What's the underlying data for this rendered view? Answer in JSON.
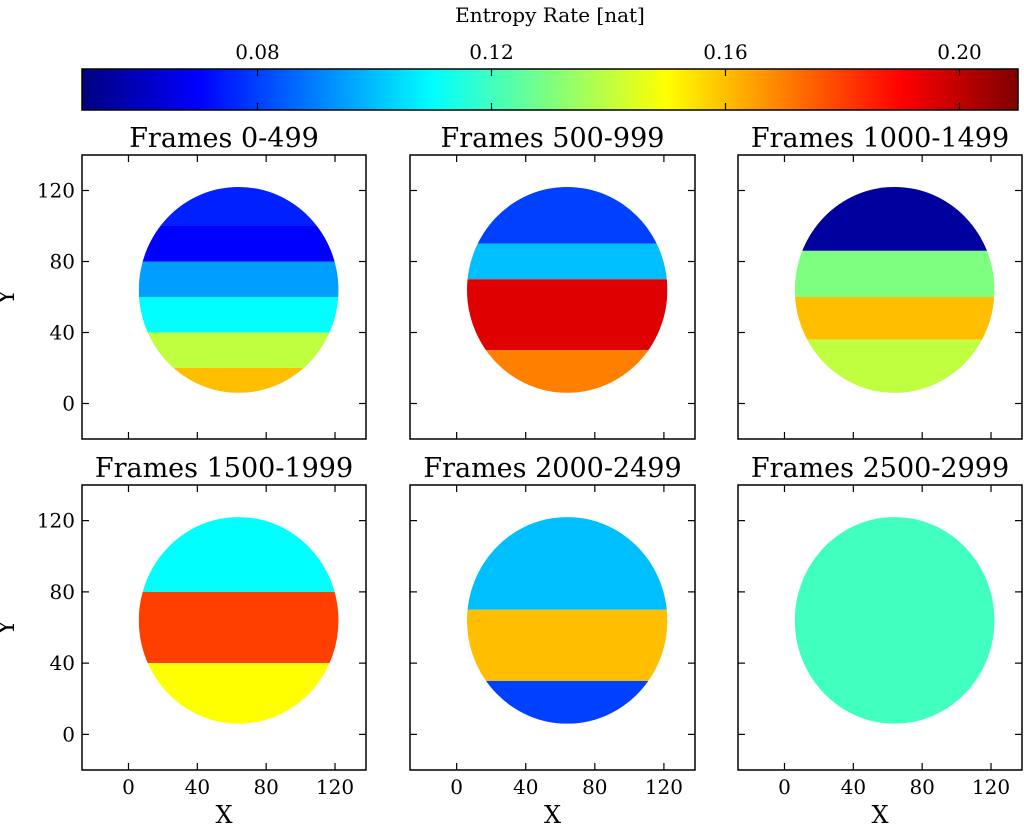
{
  "colorbar": {
    "label": "Entropy Rate [nat]",
    "ticks": [
      0.08,
      0.12,
      0.16,
      0.2
    ],
    "tick_labels": [
      "0.08",
      "0.12",
      "0.16",
      "0.20"
    ],
    "range": [
      0.05,
      0.21
    ],
    "colormap": "jet",
    "colors": [
      "#00007f",
      "#0000ff",
      "#007fff",
      "#00ffff",
      "#7fff7f",
      "#ffff00",
      "#ff7f00",
      "#ff0000",
      "#7f0000"
    ]
  },
  "chart_data": [
    {
      "type": "heatmap",
      "title": "Frames 0-499",
      "xlabel": "",
      "ylabel": "Y",
      "xlim": [
        -27,
        138
      ],
      "ylim": [
        -20,
        140
      ],
      "xticks": [
        0,
        40,
        80,
        120
      ],
      "yticks": [
        0,
        40,
        80,
        120
      ],
      "show_xticklabels": false,
      "show_yticklabels": true,
      "disc": {
        "center": [
          64,
          64
        ],
        "radius": 58
      },
      "regions": [
        {
          "y_from": 122,
          "y_to": 100,
          "value": 0.075
        },
        {
          "y_from": 100,
          "y_to": 80,
          "value": 0.07
        },
        {
          "y_from": 80,
          "y_to": 60,
          "value": 0.095
        },
        {
          "y_from": 60,
          "y_to": 40,
          "value": 0.11
        },
        {
          "y_from": 40,
          "y_to": 20,
          "value": 0.14
        },
        {
          "y_from": 20,
          "y_to": 6,
          "value": 0.16
        }
      ]
    },
    {
      "type": "heatmap",
      "title": "Frames 500-999",
      "xlabel": "",
      "ylabel": "",
      "xlim": [
        -27,
        138
      ],
      "ylim": [
        -20,
        140
      ],
      "xticks": [
        0,
        40,
        80,
        120
      ],
      "yticks": [
        0,
        40,
        80,
        120
      ],
      "show_xticklabels": false,
      "show_yticklabels": false,
      "disc": {
        "center": [
          64,
          64
        ],
        "radius": 58
      },
      "regions": [
        {
          "y_from": 122,
          "y_to": 90,
          "value": 0.08
        },
        {
          "y_from": 90,
          "y_to": 70,
          "value": 0.1
        },
        {
          "y_from": 70,
          "y_to": 30,
          "value": 0.195
        },
        {
          "y_from": 30,
          "y_to": 6,
          "value": 0.17
        }
      ]
    },
    {
      "type": "heatmap",
      "title": "Frames 1000-1499",
      "xlabel": "",
      "ylabel": "",
      "xlim": [
        -27,
        138
      ],
      "ylim": [
        -20,
        140
      ],
      "xticks": [
        0,
        40,
        80,
        120
      ],
      "yticks": [
        0,
        40,
        80,
        120
      ],
      "show_xticklabels": false,
      "show_yticklabels": false,
      "disc": {
        "center": [
          64,
          64
        ],
        "radius": 58
      },
      "regions": [
        {
          "y_from": 122,
          "y_to": 86,
          "value": 0.055
        },
        {
          "y_from": 86,
          "y_to": 60,
          "value": 0.13
        },
        {
          "y_from": 60,
          "y_to": 36,
          "value": 0.16
        },
        {
          "y_from": 36,
          "y_to": 6,
          "value": 0.14
        }
      ]
    },
    {
      "type": "heatmap",
      "title": "Frames 1500-1999",
      "xlabel": "X",
      "ylabel": "Y",
      "xlim": [
        -27,
        138
      ],
      "ylim": [
        -20,
        140
      ],
      "xticks": [
        0,
        40,
        80,
        120
      ],
      "yticks": [
        0,
        40,
        80,
        120
      ],
      "show_xticklabels": true,
      "show_yticklabels": true,
      "disc": {
        "center": [
          64,
          64
        ],
        "radius": 58
      },
      "regions": [
        {
          "y_from": 122,
          "y_to": 80,
          "value": 0.11
        },
        {
          "y_from": 80,
          "y_to": 40,
          "value": 0.18
        },
        {
          "y_from": 40,
          "y_to": 6,
          "value": 0.15
        }
      ]
    },
    {
      "type": "heatmap",
      "title": "Frames 2000-2499",
      "xlabel": "X",
      "ylabel": "",
      "xlim": [
        -27,
        138
      ],
      "ylim": [
        -20,
        140
      ],
      "xticks": [
        0,
        40,
        80,
        120
      ],
      "yticks": [
        0,
        40,
        80,
        120
      ],
      "show_xticklabels": true,
      "show_yticklabels": false,
      "disc": {
        "center": [
          64,
          64
        ],
        "radius": 58
      },
      "regions": [
        {
          "y_from": 122,
          "y_to": 70,
          "value": 0.1
        },
        {
          "y_from": 70,
          "y_to": 30,
          "value": 0.16
        },
        {
          "y_from": 30,
          "y_to": 6,
          "value": 0.08
        }
      ]
    },
    {
      "type": "heatmap",
      "title": "Frames 2500-2999",
      "xlabel": "X",
      "ylabel": "",
      "xlim": [
        -27,
        138
      ],
      "ylim": [
        -20,
        140
      ],
      "xticks": [
        0,
        40,
        80,
        120
      ],
      "yticks": [
        0,
        40,
        80,
        120
      ],
      "show_xticklabels": true,
      "show_yticklabels": false,
      "disc": {
        "center": [
          64,
          64
        ],
        "radius": 58
      },
      "regions": [
        {
          "y_from": 122,
          "y_to": 6,
          "value": 0.12
        }
      ]
    }
  ]
}
